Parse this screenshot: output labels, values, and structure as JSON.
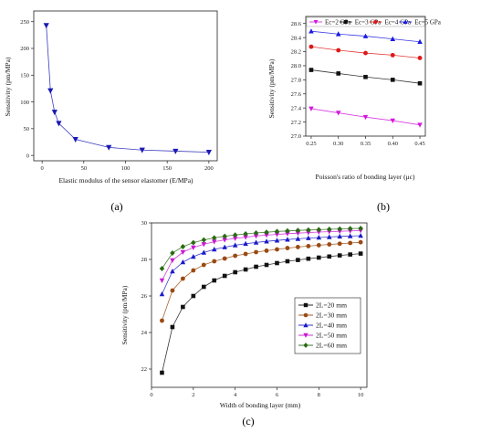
{
  "chart_data": [
    {
      "type": "line",
      "panel_label": "(a)",
      "xlabel": "Elastic modulus of the sensor elastomer (E/MPa)",
      "ylabel": "Sensitivity (pm/MPa)",
      "xlim": [
        -10,
        210
      ],
      "ylim": [
        -10,
        270
      ],
      "xticks": [
        0,
        50,
        100,
        150,
        200
      ],
      "yticks": [
        0,
        50,
        100,
        150,
        200,
        250
      ],
      "series": [
        {
          "color": "#1a1ab4",
          "marker": "triangle-down",
          "x": [
            5,
            10,
            15,
            20,
            40,
            80,
            120,
            160,
            200
          ],
          "y": [
            243,
            121,
            81,
            60,
            30,
            15,
            10,
            8,
            6
          ]
        }
      ]
    },
    {
      "type": "line",
      "panel_label": "(b)",
      "xlabel": "Poisson's ratio of bonding layer (μc)",
      "ylabel": "Sensitivity (pm/MPa)",
      "xlim": [
        0.24,
        0.46
      ],
      "ylim": [
        27.0,
        28.7
      ],
      "xticks": [
        "0.25",
        "0.30",
        "0.35",
        "0.40",
        "0.45"
      ],
      "yticks": [
        "27.0",
        "27.2",
        "27.4",
        "27.6",
        "27.8",
        "28.0",
        "28.2",
        "28.4",
        "28.6"
      ],
      "legend_position": "top",
      "series": [
        {
          "name": "Ec=2 GPa",
          "color": "#d21adc",
          "marker": "triangle-down",
          "x": [
            0.25,
            0.3,
            0.35,
            0.4,
            0.45
          ],
          "y": [
            27.39,
            27.33,
            27.27,
            27.22,
            27.16
          ]
        },
        {
          "name": "Ec=3 GPa",
          "color": "#111111",
          "marker": "square",
          "x": [
            0.25,
            0.3,
            0.35,
            0.4,
            0.45
          ],
          "y": [
            27.94,
            27.89,
            27.84,
            27.8,
            27.75
          ]
        },
        {
          "name": "Ec=4 GPa",
          "color": "#e01818",
          "marker": "circle",
          "x": [
            0.25,
            0.3,
            0.35,
            0.4,
            0.45
          ],
          "y": [
            28.27,
            28.22,
            28.18,
            28.15,
            28.11
          ]
        },
        {
          "name": "Ec=5 GPa",
          "color": "#1a1ae0",
          "marker": "triangle-up",
          "x": [
            0.25,
            0.3,
            0.35,
            0.4,
            0.45
          ],
          "y": [
            28.49,
            28.45,
            28.42,
            28.38,
            28.34
          ]
        }
      ]
    },
    {
      "type": "line",
      "panel_label": "(c)",
      "xlabel": "Width of bonding layer (mm)",
      "ylabel": "Sensitivity (pm/MPa)",
      "xlim": [
        0,
        10.3
      ],
      "ylim": [
        21.0,
        30.0
      ],
      "xticks": [
        0,
        2,
        4,
        6,
        8,
        10
      ],
      "yticks": [
        22,
        24,
        26,
        28,
        30
      ],
      "legend_position": "center-right",
      "series": [
        {
          "name": "2L=20 mm",
          "color": "#111111",
          "marker": "square",
          "x": [
            0.5,
            1,
            1.5,
            2,
            2.5,
            3,
            3.5,
            4,
            4.5,
            5,
            5.5,
            6,
            6.5,
            7,
            7.5,
            8,
            8.5,
            9,
            9.5,
            10
          ],
          "y": [
            21.8,
            24.3,
            25.4,
            26.0,
            26.5,
            26.85,
            27.1,
            27.3,
            27.45,
            27.6,
            27.7,
            27.8,
            27.9,
            27.97,
            28.04,
            28.1,
            28.16,
            28.22,
            28.27,
            28.32
          ]
        },
        {
          "name": "2L=30 mm",
          "color": "#9a4a12",
          "marker": "circle",
          "x": [
            0.5,
            1,
            1.5,
            2,
            2.5,
            3,
            3.5,
            4,
            4.5,
            5,
            5.5,
            6,
            6.5,
            7,
            7.5,
            8,
            8.5,
            9,
            9.5,
            10
          ],
          "y": [
            24.65,
            26.3,
            26.95,
            27.4,
            27.7,
            27.9,
            28.05,
            28.2,
            28.3,
            28.4,
            28.48,
            28.55,
            28.62,
            28.68,
            28.73,
            28.78,
            28.82,
            28.86,
            28.9,
            28.94
          ]
        },
        {
          "name": "2L=40 mm",
          "color": "#1a1ac8",
          "marker": "triangle-up",
          "x": [
            0.5,
            1,
            1.5,
            2,
            2.5,
            3,
            3.5,
            4,
            4.5,
            5,
            5.5,
            6,
            6.5,
            7,
            7.5,
            8,
            8.5,
            9,
            9.5,
            10
          ],
          "y": [
            26.1,
            27.35,
            27.85,
            28.15,
            28.38,
            28.55,
            28.67,
            28.78,
            28.86,
            28.93,
            28.99,
            29.04,
            29.09,
            29.13,
            29.17,
            29.2,
            29.23,
            29.26,
            29.28,
            29.3
          ]
        },
        {
          "name": "2L=50 mm",
          "color": "#c81ad2",
          "marker": "triangle-down",
          "x": [
            0.5,
            1,
            1.5,
            2,
            2.5,
            3,
            3.5,
            4,
            4.5,
            5,
            5.5,
            6,
            6.5,
            7,
            7.5,
            8,
            8.5,
            9,
            9.5,
            10
          ],
          "y": [
            26.85,
            27.95,
            28.4,
            28.65,
            28.83,
            28.97,
            29.07,
            29.15,
            29.22,
            29.28,
            29.33,
            29.37,
            29.41,
            29.44,
            29.47,
            29.5,
            29.52,
            29.54,
            29.56,
            29.58
          ]
        },
        {
          "name": "2L=60 mm",
          "color": "#2a6a12",
          "marker": "diamond",
          "x": [
            0.5,
            1,
            1.5,
            2,
            2.5,
            3,
            3.5,
            4,
            4.5,
            5,
            5.5,
            6,
            6.5,
            7,
            7.5,
            8,
            8.5,
            9,
            9.5,
            10
          ],
          "y": [
            27.5,
            28.35,
            28.7,
            28.92,
            29.07,
            29.18,
            29.27,
            29.34,
            29.4,
            29.45,
            29.49,
            29.53,
            29.56,
            29.59,
            29.61,
            29.63,
            29.65,
            29.67,
            29.69,
            29.7
          ]
        }
      ]
    }
  ]
}
